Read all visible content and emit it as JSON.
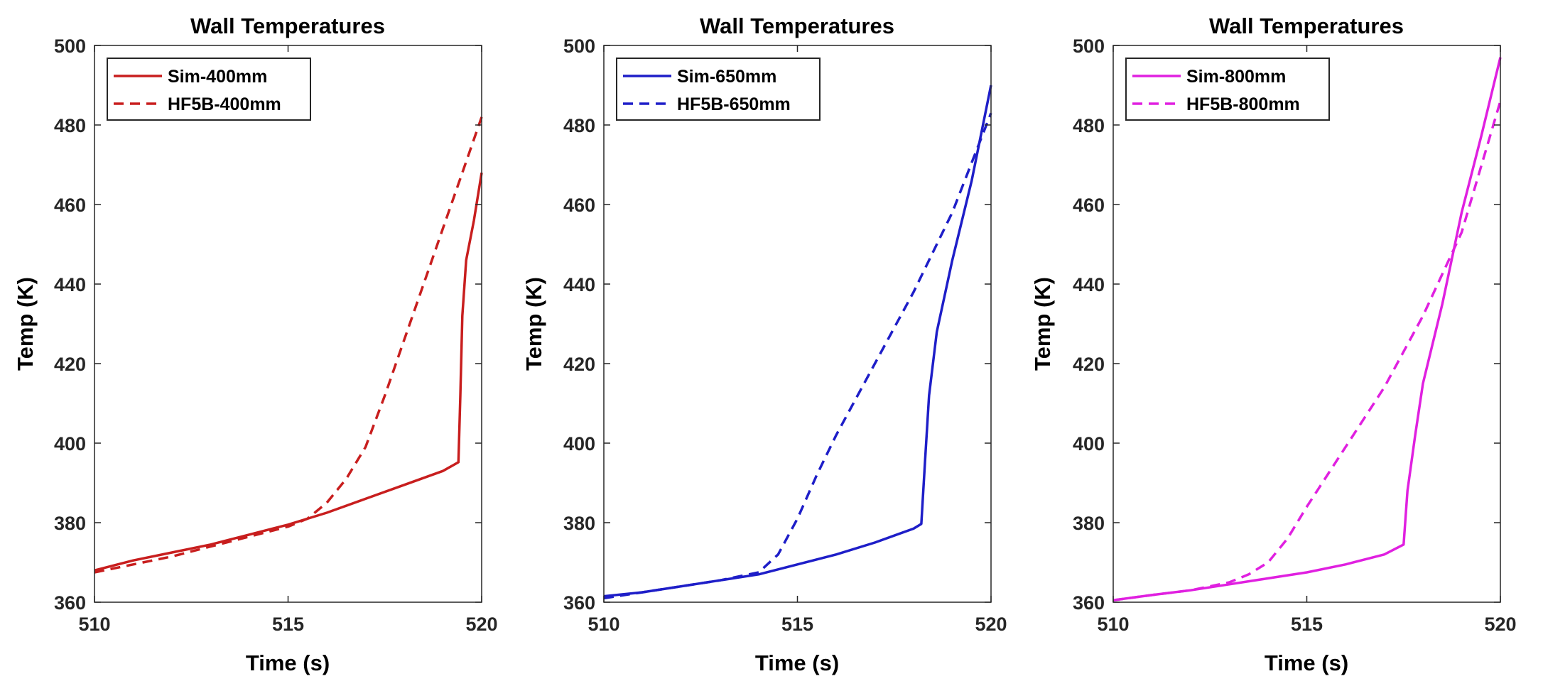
{
  "chart_data": [
    {
      "type": "line",
      "title": "Wall Temperatures",
      "xlabel": "Time (s)",
      "ylabel": "Temp (K)",
      "xlim": [
        510,
        520
      ],
      "ylim": [
        360,
        500
      ],
      "xticks": [
        510,
        515,
        520
      ],
      "yticks": [
        360,
        380,
        400,
        420,
        440,
        460,
        480,
        500
      ],
      "grid": false,
      "legend_location": "top-left",
      "series": [
        {
          "name": "Sim-400mm",
          "style": "solid",
          "color": "#c81e1e",
          "x": [
            510,
            511,
            512,
            513,
            514,
            515,
            516,
            517,
            518,
            519,
            519.4,
            519.45,
            519.5,
            519.6,
            519.8,
            520
          ],
          "y": [
            368,
            370.5,
            372.5,
            374.5,
            377,
            379.5,
            382.5,
            386,
            389.5,
            393,
            395.2,
            412,
            432,
            446,
            456,
            468
          ]
        },
        {
          "name": "HF5B-400mm",
          "style": "dashed",
          "color": "#c81e1e",
          "x": [
            510,
            511,
            512,
            513,
            514,
            515,
            515.5,
            516,
            516.5,
            517,
            517.5,
            518,
            518.5,
            519,
            519.5,
            520
          ],
          "y": [
            367.5,
            369.5,
            371.5,
            374,
            376.5,
            379,
            381,
            385,
            391,
            399,
            412,
            426,
            440,
            454,
            468,
            482
          ]
        }
      ]
    },
    {
      "type": "line",
      "title": "Wall Temperatures",
      "xlabel": "Time (s)",
      "ylabel": "Temp (K)",
      "xlim": [
        510,
        520
      ],
      "ylim": [
        360,
        500
      ],
      "xticks": [
        510,
        515,
        520
      ],
      "yticks": [
        360,
        380,
        400,
        420,
        440,
        460,
        480,
        500
      ],
      "grid": false,
      "legend_location": "top-left",
      "series": [
        {
          "name": "Sim-650mm",
          "style": "solid",
          "color": "#1e1ec8",
          "x": [
            510,
            511,
            512,
            513,
            514,
            515,
            516,
            517,
            518,
            518.2,
            518.3,
            518.4,
            518.6,
            519,
            519.5,
            520
          ],
          "y": [
            361.5,
            362.5,
            364,
            365.5,
            367,
            369.5,
            372,
            375,
            378.5,
            379.7,
            396,
            412,
            428,
            446,
            466,
            490
          ]
        },
        {
          "name": "HF5B-650mm",
          "style": "dashed",
          "color": "#1e1ec8",
          "x": [
            510,
            511,
            512,
            513,
            514,
            514.5,
            515,
            515.5,
            516,
            517,
            518,
            519,
            520
          ],
          "y": [
            361,
            362.5,
            364,
            365.5,
            367.5,
            372,
            381,
            392,
            402,
            420,
            438,
            458,
            483
          ]
        }
      ]
    },
    {
      "type": "line",
      "title": "Wall Temperatures",
      "xlabel": "Time (s)",
      "ylabel": "Temp (K)",
      "xlim": [
        510,
        520
      ],
      "ylim": [
        360,
        500
      ],
      "xticks": [
        510,
        515,
        520
      ],
      "yticks": [
        360,
        380,
        400,
        420,
        440,
        460,
        480,
        500
      ],
      "grid": false,
      "legend_location": "top-left",
      "series": [
        {
          "name": "Sim-800mm",
          "style": "solid",
          "color": "#e020e0",
          "x": [
            510,
            511,
            512,
            513,
            514,
            515,
            516,
            517,
            517.5,
            517.6,
            517.8,
            518,
            518.5,
            519,
            519.5,
            520
          ],
          "y": [
            360.5,
            361.8,
            363,
            364.5,
            366,
            367.5,
            369.5,
            372,
            374.5,
            388,
            402,
            415,
            435,
            458,
            477,
            497
          ]
        },
        {
          "name": "HF5B-800mm",
          "style": "dashed",
          "color": "#e020e0",
          "x": [
            510,
            511,
            512,
            513,
            513.5,
            514,
            514.5,
            515,
            516,
            517,
            518,
            519,
            520
          ],
          "y": [
            360.5,
            361.8,
            363,
            365,
            367,
            370,
            376,
            384,
            399,
            414,
            432,
            453,
            486
          ]
        }
      ]
    }
  ]
}
